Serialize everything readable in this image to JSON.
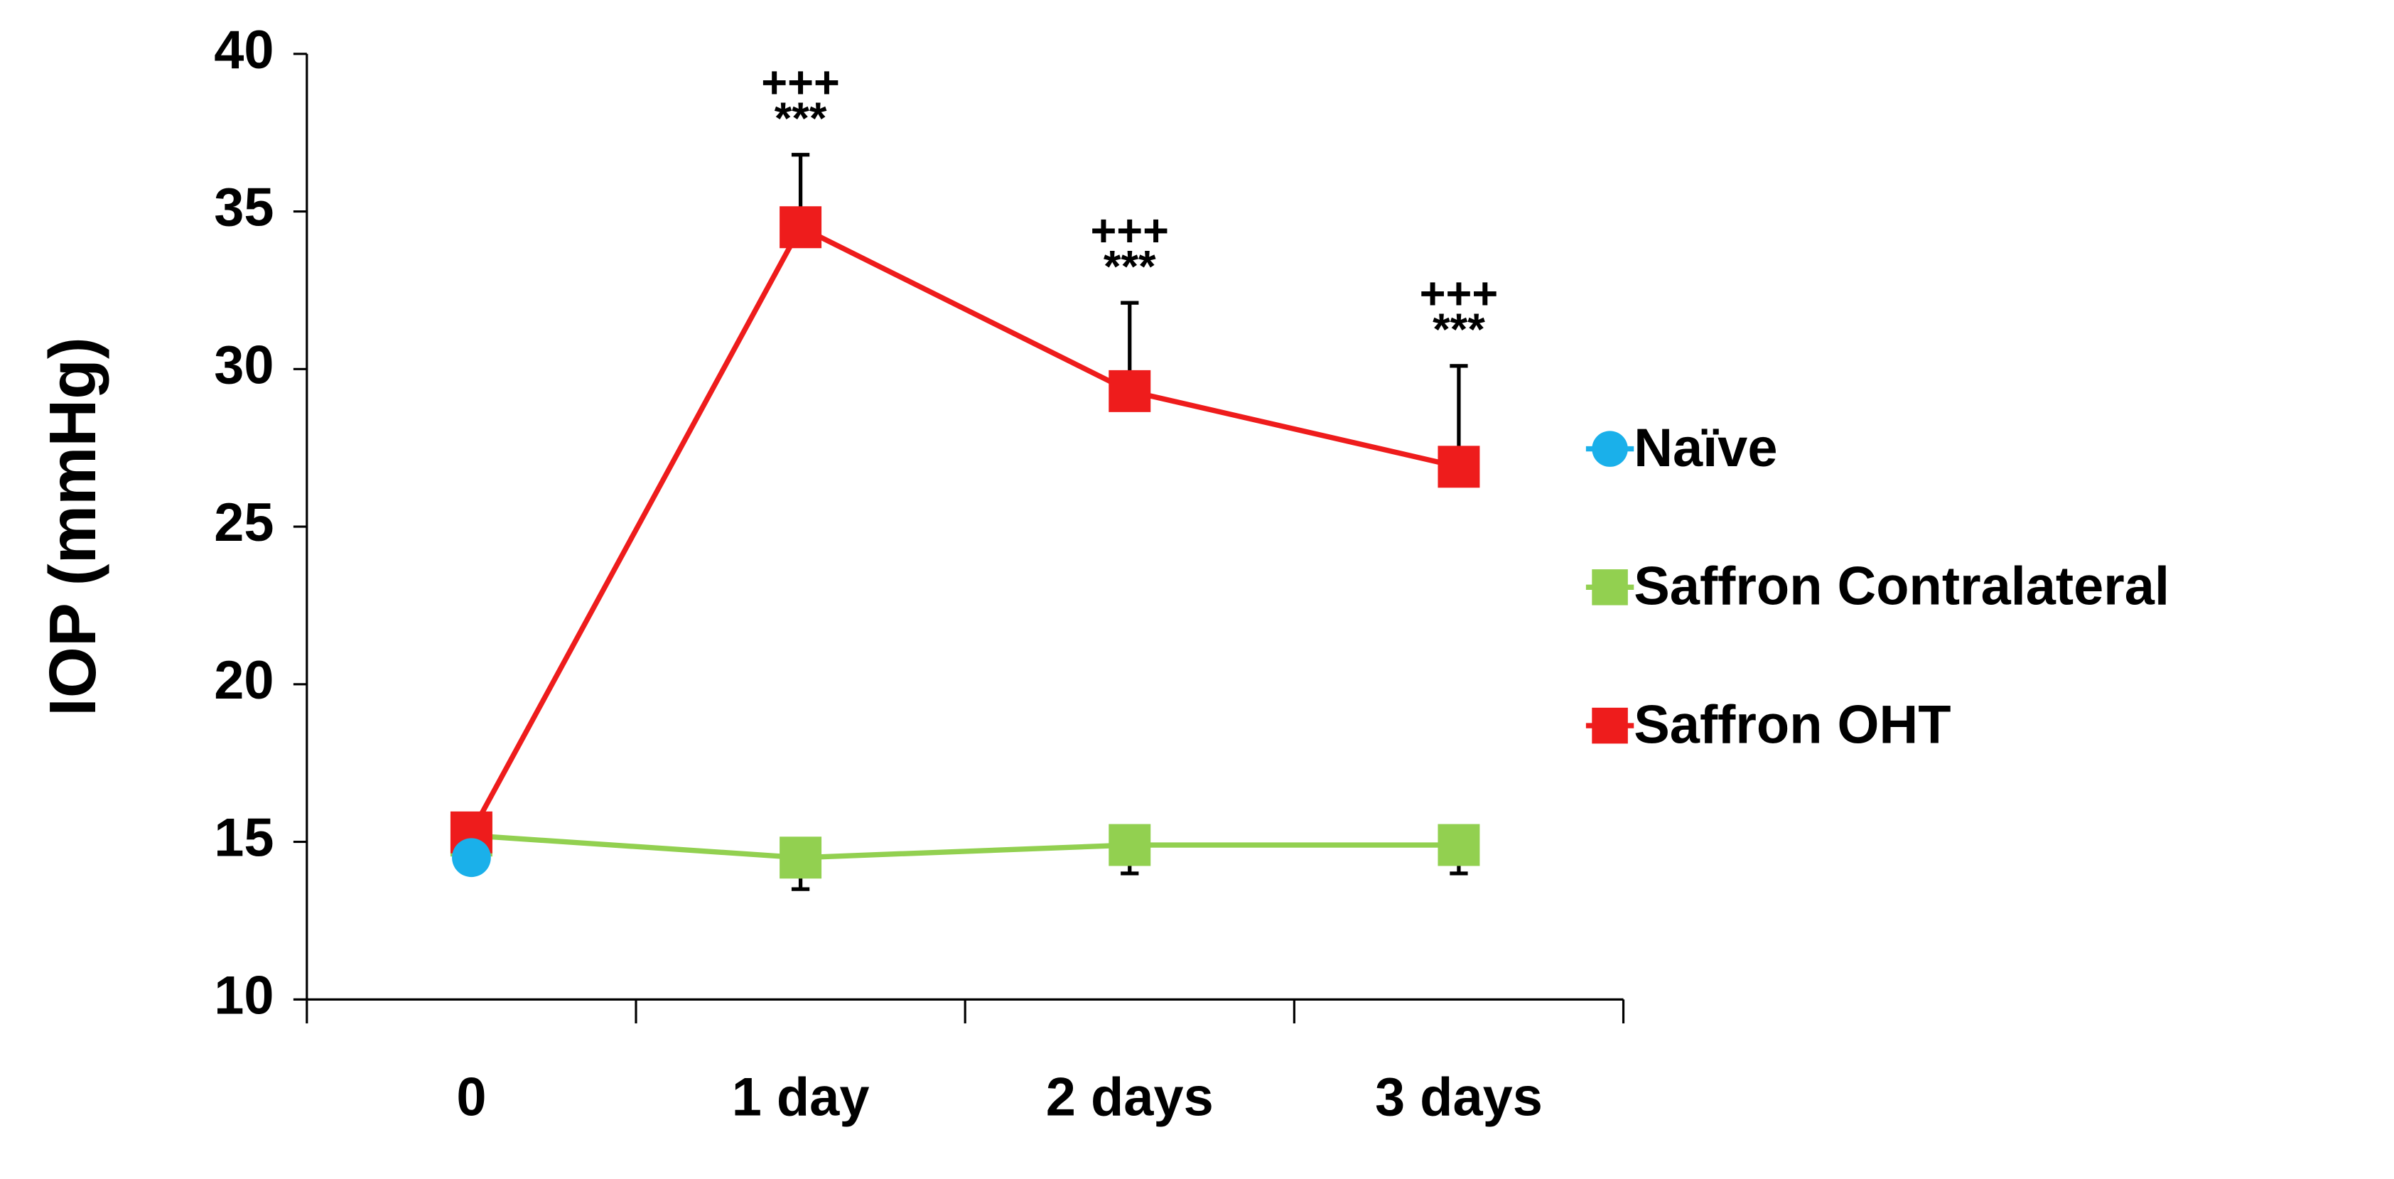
{
  "chart_data": {
    "type": "line",
    "y_label": "IOP (mmHg)",
    "categories": [
      "0",
      "1 day",
      "2 days",
      "3 days"
    ],
    "ylim": [
      10,
      40
    ],
    "yticks": [
      10,
      15,
      20,
      25,
      30,
      35,
      40
    ],
    "grid": false,
    "legend": "right",
    "series": [
      {
        "name": "Naïve",
        "color": "#1ab0ea",
        "marker": "circle",
        "values": [
          14.5,
          null,
          null,
          null
        ]
      },
      {
        "name": "Saffron Contralateral",
        "color": "#92d050",
        "marker": "square",
        "values": [
          15.2,
          14.5,
          14.9,
          14.9
        ],
        "errors": [
          0.4,
          1.0,
          0.9,
          0.9
        ],
        "error_bars": "down"
      },
      {
        "name": "Saffron OHT",
        "color": "#ee1c1c",
        "marker": "square",
        "values": [
          15.3,
          34.5,
          29.3,
          26.9
        ],
        "errors": [
          0.5,
          2.3,
          2.8,
          3.2
        ],
        "error_bars": "up",
        "annotations": [
          null,
          [
            "+++",
            "***"
          ],
          [
            "+++",
            "***"
          ],
          [
            "+++",
            "***"
          ]
        ]
      }
    ]
  }
}
